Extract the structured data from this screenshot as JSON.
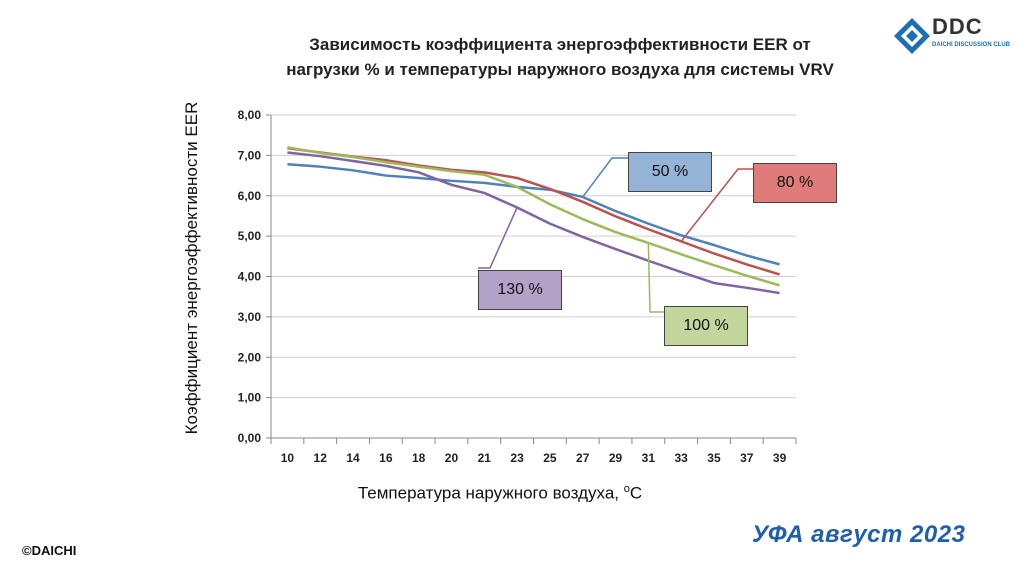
{
  "logo": {
    "brand": "DDC",
    "tagline": "DAICHI DISCUSSION CLUB"
  },
  "footer": {
    "left": "©DAICHI",
    "right": "УФА август 2023"
  },
  "colors": {
    "series_50": "#4f81bd",
    "series_80": "#c0504d",
    "series_100": "#9bbb59",
    "series_130": "#8064a2",
    "callout_50": "#95b3d7",
    "callout_80": "#e07b7b",
    "callout_100": "#c3d69b",
    "callout_130": "#b3a2c7"
  },
  "chart_data": {
    "type": "line",
    "title": "Зависимость коэффициента энергоэффективности  EER от нагрузки % и температуры наружного воздуха для системы VRV",
    "title_line1": "Зависимость коэффициента энергоэффективности  EER от",
    "title_line2": "нагрузки % и температуры наружного воздуха для системы VRV",
    "xlabel": "Температура наружного воздуха,",
    "xlabel_unit": "o",
    "xlabel_unit_suffix": "C",
    "ylabel": "Коэффициент энергоэффективности EER",
    "categories": [
      "10",
      "12",
      "14",
      "16",
      "18",
      "20",
      "21",
      "23",
      "25",
      "27",
      "29",
      "31",
      "33",
      "35",
      "37",
      "39"
    ],
    "y_ticks": [
      "0,00",
      "1,00",
      "2,00",
      "3,00",
      "4,00",
      "5,00",
      "6,00",
      "7,00",
      "8,00"
    ],
    "ylim": [
      0,
      8
    ],
    "grid": true,
    "legend": "callouts",
    "series": [
      {
        "name": "50 %",
        "values": [
          6.78,
          6.72,
          6.63,
          6.5,
          6.44,
          6.37,
          6.32,
          6.22,
          6.15,
          5.97,
          5.62,
          5.31,
          5.02,
          4.78,
          4.52,
          4.3
        ]
      },
      {
        "name": "80 %",
        "values": [
          7.18,
          7.07,
          6.97,
          6.88,
          6.75,
          6.64,
          6.58,
          6.44,
          6.17,
          5.85,
          5.49,
          5.17,
          4.87,
          4.57,
          4.3,
          4.05
        ]
      },
      {
        "name": "100 %",
        "values": [
          7.2,
          7.06,
          6.96,
          6.83,
          6.72,
          6.61,
          6.52,
          6.22,
          5.79,
          5.42,
          5.1,
          4.83,
          4.55,
          4.28,
          4.02,
          3.78
        ]
      },
      {
        "name": "130 %",
        "values": [
          7.07,
          6.98,
          6.86,
          6.74,
          6.58,
          6.27,
          6.07,
          5.71,
          5.31,
          4.98,
          4.68,
          4.39,
          4.11,
          3.84,
          3.72,
          3.59
        ]
      }
    ]
  }
}
